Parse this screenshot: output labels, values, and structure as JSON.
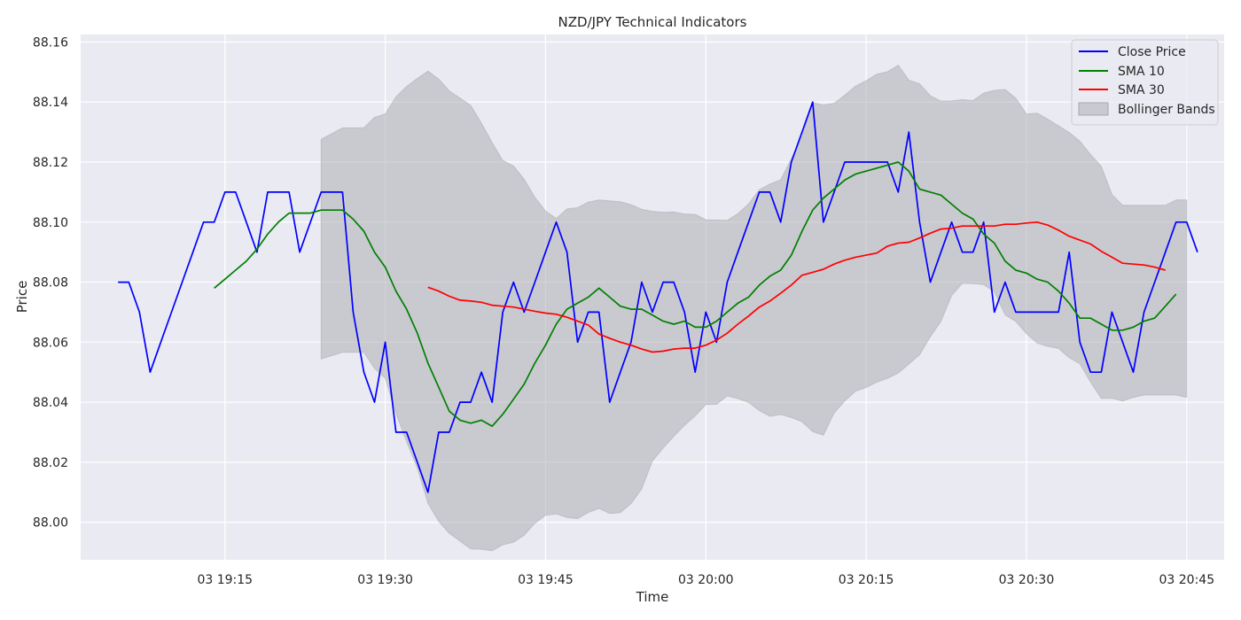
{
  "chart_data": {
    "type": "line",
    "title": "NZD/JPY Technical Indicators",
    "xlabel": "Time",
    "ylabel": "Price",
    "x_start": "19:05",
    "x_step_minutes": 1,
    "xlim": [
      "19:01:30",
      "20:48:30"
    ],
    "ylim": [
      87.9875,
      88.1625
    ],
    "x_ticks": [
      "03 19:15",
      "03 19:30",
      "03 19:45",
      "03 20:00",
      "03 20:15",
      "03 20:30",
      "03 20:45"
    ],
    "y_ticks": [
      "88.00",
      "88.02",
      "88.04",
      "88.06",
      "88.08",
      "88.10",
      "88.12",
      "88.14",
      "88.16"
    ],
    "grid": true,
    "legend_position": "top-right",
    "colors": {
      "plot_bg": "#eaeaf2",
      "grid": "#ffffff",
      "band": "#a8a8ad"
    },
    "series": [
      {
        "name": "Close Price",
        "color": "#0000ff",
        "values": [
          88.08,
          88.08,
          88.07,
          88.05,
          88.06,
          88.07,
          88.08,
          88.09,
          88.1,
          88.1,
          88.11,
          88.11,
          88.1,
          88.09,
          88.11,
          88.11,
          88.11,
          88.09,
          88.1,
          88.11,
          88.11,
          88.11,
          88.07,
          88.05,
          88.04,
          88.06,
          88.03,
          88.03,
          88.02,
          88.01,
          88.03,
          88.03,
          88.04,
          88.04,
          88.05,
          88.04,
          88.07,
          88.08,
          88.07,
          88.08,
          88.09,
          88.1,
          88.09,
          88.06,
          88.07,
          88.07,
          88.04,
          88.05,
          88.06,
          88.08,
          88.07,
          88.08,
          88.08,
          88.07,
          88.05,
          88.07,
          88.06,
          88.08,
          88.09,
          88.1,
          88.11,
          88.11,
          88.1,
          88.12,
          88.13,
          88.14,
          88.1,
          88.11,
          88.12,
          88.12,
          88.12,
          88.12,
          88.12,
          88.11,
          88.13,
          88.1,
          88.08,
          88.09,
          88.1,
          88.09,
          88.09,
          88.1,
          88.07,
          88.08,
          88.07,
          88.07,
          88.07,
          88.07,
          88.07,
          88.09,
          88.06,
          88.05,
          88.05,
          88.07,
          88.06,
          88.05,
          88.07,
          88.08,
          88.09,
          88.1,
          88.1,
          88.09
        ]
      },
      {
        "name": "SMA 10",
        "color": "#008000",
        "values": [
          null,
          null,
          null,
          null,
          null,
          null,
          null,
          null,
          null,
          88.078,
          88.081,
          88.084,
          88.087,
          88.091,
          88.096,
          88.1,
          88.103,
          88.103,
          88.103,
          88.104,
          88.104,
          88.104,
          88.101,
          88.097,
          88.09,
          88.085,
          88.077,
          88.071,
          88.063,
          88.053,
          88.045,
          88.037,
          88.034,
          88.033,
          88.034,
          88.032,
          88.036,
          88.041,
          88.046,
          88.053,
          88.059,
          88.066,
          88.071,
          88.073,
          88.075,
          88.078,
          88.075,
          88.072,
          88.071,
          88.071,
          88.069,
          88.067,
          88.066,
          88.067,
          88.065,
          88.065,
          88.067,
          88.07,
          88.073,
          88.075,
          88.079,
          88.082,
          88.084,
          88.089,
          88.097,
          88.104,
          88.108,
          88.111,
          88.114,
          88.116,
          88.117,
          88.118,
          88.119,
          88.12,
          88.117,
          88.111,
          88.11,
          88.109,
          88.106,
          88.103,
          88.101,
          88.096,
          88.093,
          88.087,
          88.084,
          88.083,
          88.081,
          88.08,
          88.077,
          88.073,
          88.068,
          88.068,
          88.066,
          88.064,
          88.064,
          88.065,
          88.067,
          88.068,
          88.072,
          88.076,
          null,
          null
        ]
      },
      {
        "name": "SMA 30",
        "color": "#ff0000",
        "values": [
          null,
          null,
          null,
          null,
          null,
          null,
          null,
          null,
          null,
          null,
          null,
          null,
          null,
          null,
          null,
          null,
          null,
          null,
          null,
          null,
          null,
          null,
          null,
          null,
          null,
          null,
          null,
          null,
          null,
          88.0783,
          88.077,
          88.0753,
          88.074,
          88.0737,
          88.0733,
          88.0723,
          88.072,
          88.0717,
          88.071,
          88.0703,
          88.0697,
          88.0693,
          88.0683,
          88.067,
          88.0657,
          88.0627,
          88.0613,
          88.06,
          88.059,
          88.0577,
          88.0567,
          88.057,
          88.0577,
          88.058,
          88.058,
          88.059,
          88.0607,
          88.063,
          88.066,
          88.0687,
          88.0717,
          88.0737,
          88.0763,
          88.079,
          88.0823,
          88.0833,
          88.0843,
          88.086,
          88.0873,
          88.0883,
          88.089,
          88.0897,
          88.092,
          88.093,
          88.0933,
          88.0947,
          88.0963,
          88.0977,
          88.098,
          88.0987,
          88.0987,
          88.0987,
          88.0987,
          88.0993,
          88.0993,
          88.0997,
          88.1,
          88.099,
          88.0973,
          88.0953,
          88.094,
          88.0927,
          88.0903,
          88.0883,
          88.0863,
          88.086,
          88.0857,
          88.085,
          88.084,
          null,
          null,
          null
        ]
      },
      {
        "name": "Bollinger Bands",
        "color": "#a8a8ad",
        "upper": [
          null,
          null,
          null,
          null,
          null,
          null,
          null,
          null,
          null,
          null,
          null,
          null,
          null,
          null,
          null,
          null,
          null,
          null,
          null,
          88.1276,
          88.1295,
          88.1314,
          88.1314,
          88.1314,
          88.1349,
          88.136,
          88.1417,
          88.1452,
          88.1479,
          88.1503,
          88.1477,
          88.1437,
          88.1413,
          88.1389,
          88.133,
          88.1265,
          88.1205,
          88.1187,
          88.1143,
          88.1083,
          88.1037,
          88.1012,
          88.1044,
          88.1048,
          88.1067,
          88.1074,
          88.1071,
          88.1068,
          88.1058,
          88.1043,
          88.1036,
          88.1033,
          88.1034,
          88.1027,
          88.1026,
          88.1008,
          88.1007,
          88.1006,
          88.1028,
          88.1061,
          88.1108,
          88.1127,
          88.1141,
          88.1211,
          88.1286,
          88.1398,
          88.139,
          88.1396,
          88.1423,
          88.1453,
          88.1471,
          88.1493,
          88.1501,
          88.1523,
          88.1473,
          88.1461,
          88.1421,
          88.1403,
          88.1404,
          88.1408,
          88.1405,
          88.143,
          88.1439,
          88.1442,
          88.1413,
          88.136,
          88.1363,
          88.1343,
          88.1321,
          88.1299,
          88.127,
          88.1225,
          88.1186,
          88.1092,
          88.1056,
          88.1056,
          88.1056,
          88.1056,
          88.1056,
          88.1074,
          88.1074,
          null
        ],
        "lower": [
          null,
          null,
          null,
          null,
          null,
          null,
          null,
          null,
          null,
          null,
          null,
          null,
          null,
          null,
          null,
          null,
          null,
          null,
          null,
          88.0544,
          88.0555,
          88.0566,
          88.0566,
          88.0566,
          88.0513,
          88.048,
          88.0363,
          88.0268,
          88.0181,
          88.0063,
          88.0003,
          87.9963,
          87.9937,
          87.9911,
          87.991,
          87.9905,
          87.9925,
          87.9933,
          87.9957,
          87.9997,
          88.0023,
          88.0028,
          88.0016,
          88.0012,
          88.0033,
          88.0046,
          88.0029,
          88.0032,
          88.0062,
          88.0111,
          88.0204,
          88.0247,
          88.0286,
          88.0323,
          88.0354,
          88.0392,
          88.0393,
          88.0421,
          88.0412,
          88.0399,
          88.0372,
          88.0353,
          88.0359,
          88.0349,
          88.0335,
          88.0302,
          88.029,
          88.0364,
          88.0404,
          88.0437,
          88.0449,
          88.0467,
          88.0479,
          88.0497,
          88.0527,
          88.0558,
          88.0618,
          88.0669,
          88.0756,
          88.0796,
          88.0795,
          88.0792,
          88.0768,
          88.0691,
          88.0669,
          88.0628,
          88.0597,
          88.0586,
          88.0579,
          88.0548,
          88.0528,
          88.0467,
          88.0413,
          88.0413,
          88.0404,
          88.0416,
          88.0424,
          88.0424,
          88.0424,
          88.0424,
          88.0416,
          null
        ]
      }
    ]
  }
}
